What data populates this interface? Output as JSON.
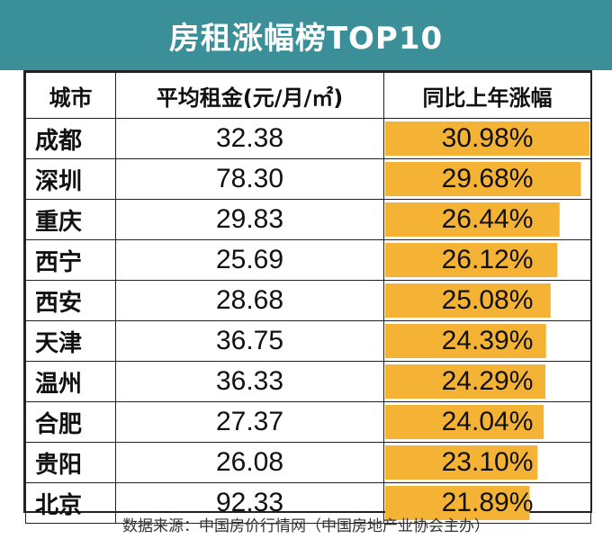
{
  "title": "房租涨幅榜TOP10",
  "source_note": "数据来源：中国房价行情网（中国房地产业协会主办）",
  "colors": {
    "header_bg": "#3a8f98",
    "bar": "#f5b335"
  },
  "chart_data": {
    "type": "table",
    "title": "房租涨幅榜TOP10",
    "headers": [
      "城市",
      "平均租金(元/月/㎡)",
      "同比上年涨幅"
    ],
    "rows": [
      {
        "city": "成都",
        "rent": "32.38",
        "growth_label": "30.98%",
        "growth": 30.98
      },
      {
        "city": "深圳",
        "rent": "78.30",
        "growth_label": "29.68%",
        "growth": 29.68
      },
      {
        "city": "重庆",
        "rent": "29.83",
        "growth_label": "26.44%",
        "growth": 26.44
      },
      {
        "city": "西宁",
        "rent": "25.69",
        "growth_label": "26.12%",
        "growth": 26.12
      },
      {
        "city": "西安",
        "rent": "28.68",
        "growth_label": "25.08%",
        "growth": 25.08
      },
      {
        "city": "天津",
        "rent": "36.75",
        "growth_label": "24.39%",
        "growth": 24.39
      },
      {
        "city": "温州",
        "rent": "36.33",
        "growth_label": "24.29%",
        "growth": 24.29
      },
      {
        "city": "合肥",
        "rent": "27.37",
        "growth_label": "24.04%",
        "growth": 24.04
      },
      {
        "city": "贵阳",
        "rent": "26.08",
        "growth_label": "23.10%",
        "growth": 23.1
      },
      {
        "city": "北京",
        "rent": "92.33",
        "growth_label": "21.89%",
        "growth": 21.89
      }
    ]
  }
}
